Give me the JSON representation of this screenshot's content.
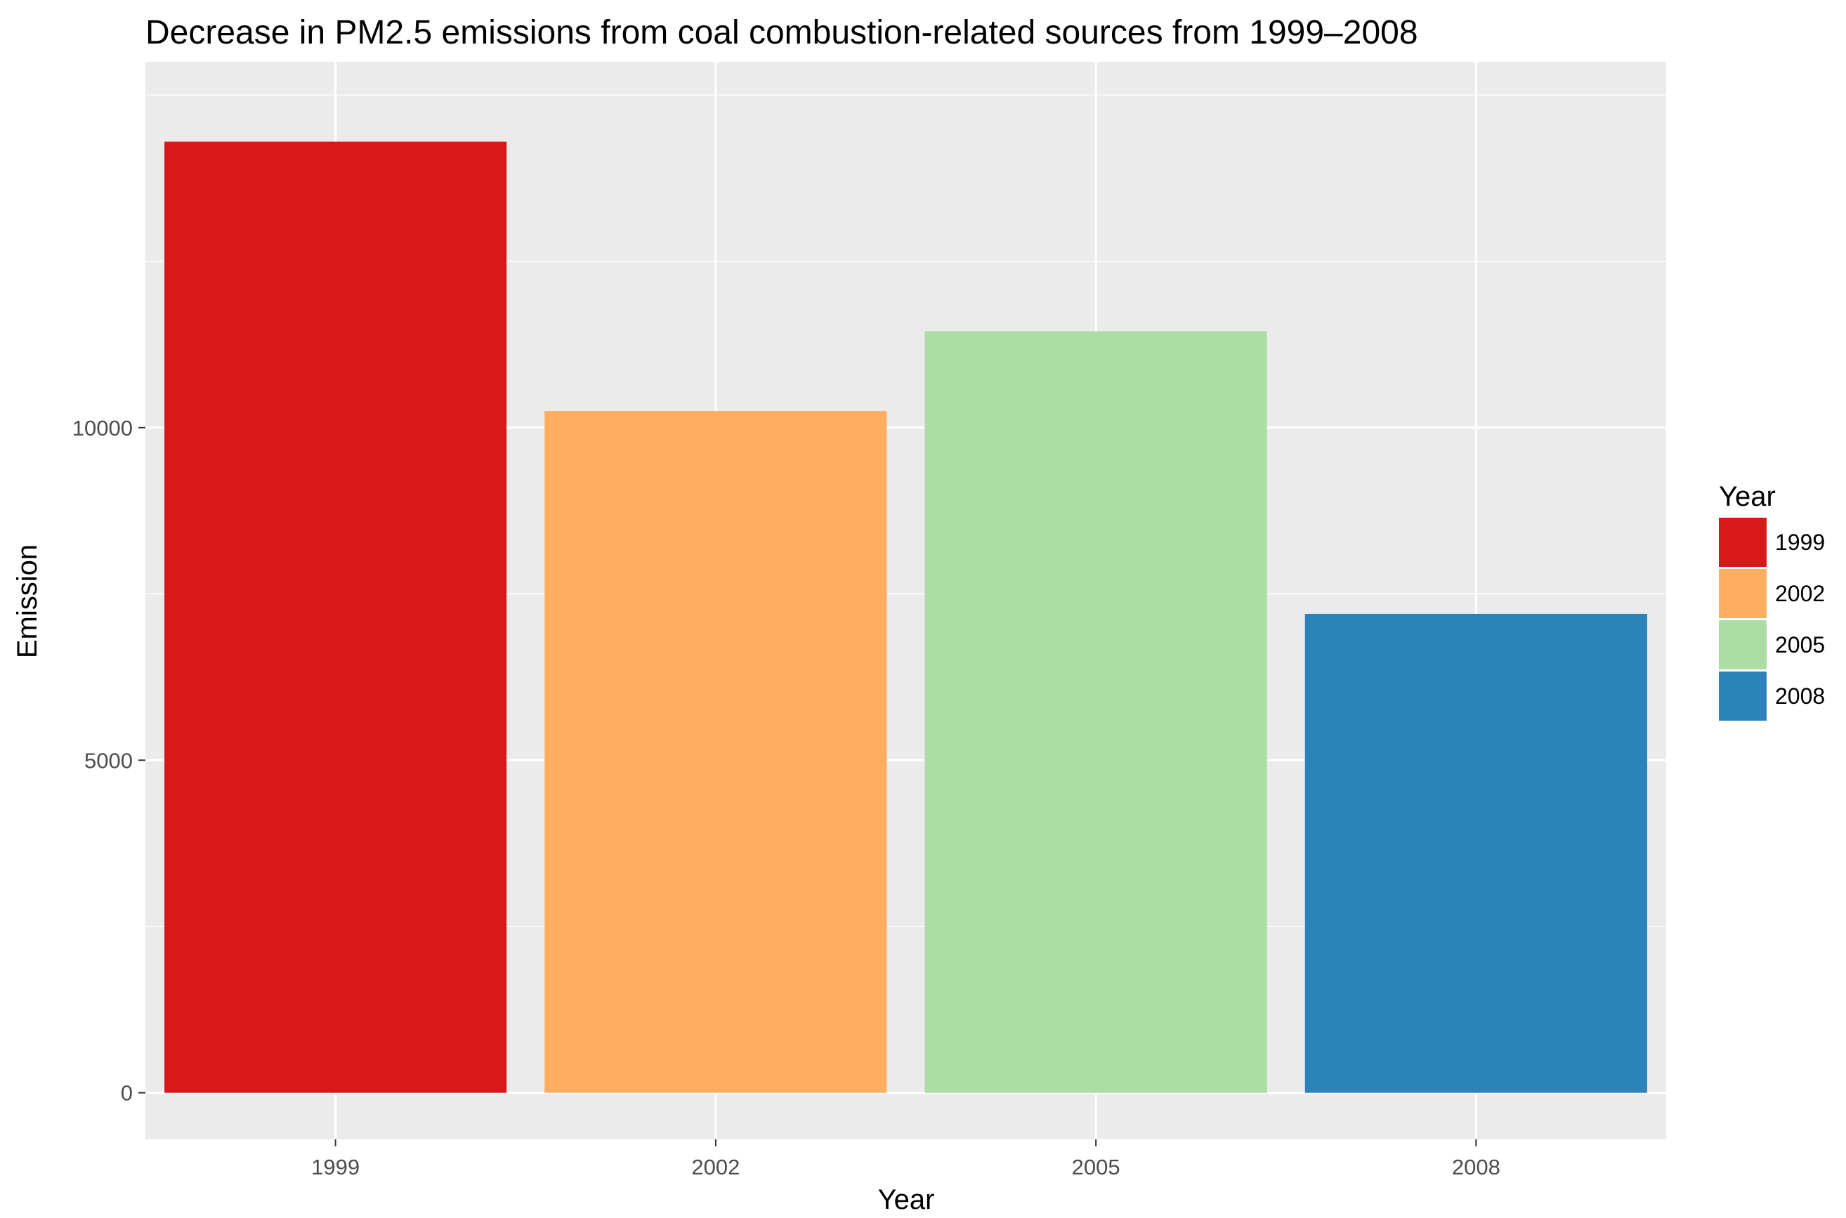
{
  "chart_data": {
    "type": "bar",
    "title": "Decrease in PM2.5 emissions from coal combustion-related sources from 1999–2008",
    "xlabel": "Year",
    "ylabel": "Emission",
    "categories": [
      "1999",
      "2002",
      "2005",
      "2008"
    ],
    "values": [
      14300,
      10250,
      11450,
      7200
    ],
    "ylim": [
      -700,
      15500
    ],
    "yticks": [
      {
        "value": 0,
        "label": "0"
      },
      {
        "value": 5000,
        "label": "5000"
      },
      {
        "value": 10000,
        "label": "10000"
      }
    ],
    "minor_yticks": [
      2500,
      7500,
      12500,
      15000
    ],
    "grid": true,
    "panel_background": "#ebebeb",
    "grid_color": "#ffffff",
    "legend": {
      "title": "Year",
      "position": "right",
      "entries": [
        {
          "label": "1999",
          "color": "#d7191c"
        },
        {
          "label": "2002",
          "color": "#fdae61"
        },
        {
          "label": "2005",
          "color": "#abdda4"
        },
        {
          "label": "2008",
          "color": "#2b83ba"
        }
      ]
    }
  }
}
